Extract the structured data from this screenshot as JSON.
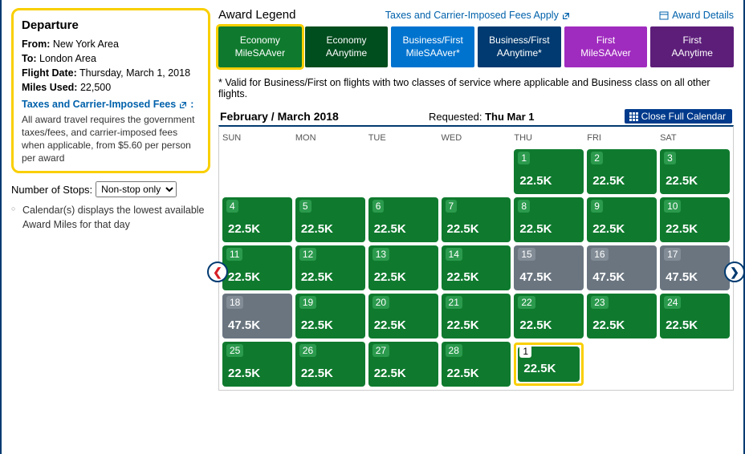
{
  "departure": {
    "heading": "Departure",
    "from_label": "From:",
    "from_value": "New York Area",
    "to_label": "To:",
    "to_value": "London Area",
    "date_label": "Flight Date:",
    "date_value": "Thursday, March 1, 2018",
    "miles_label": "Miles Used:",
    "miles_value": "22,500",
    "taxes_link": "Taxes and Carrier-Imposed Fees",
    "taxes_note": "All award travel requires the government taxes/fees, and carrier-imposed fees when applicable, from $5.60 per person per award"
  },
  "stops": {
    "label": "Number of Stops:",
    "selected": "Non-stop only"
  },
  "calendar_note": "Calendar(s) displays the lowest available Award Miles for that day",
  "top": {
    "award_legend": "Award Legend",
    "fees_apply": "Taxes and Carrier-Imposed Fees Apply",
    "award_details": "Award Details"
  },
  "legend": {
    "tabs": [
      {
        "l1": "Economy",
        "l2": "MileSAAver",
        "bg": "#0f7a2e",
        "active": true
      },
      {
        "l1": "Economy",
        "l2": "AAnytime",
        "bg": "#004d1e"
      },
      {
        "l1": "Business/First",
        "l2": "MileSAAver*",
        "bg": "#0073cf"
      },
      {
        "l1": "Business/First",
        "l2": "AAnytime*",
        "bg": "#003a70"
      },
      {
        "l1": "First",
        "l2": "MileSAAver",
        "bg": "#a02bbf"
      },
      {
        "l1": "First",
        "l2": "AAnytime",
        "bg": "#5d1e7a"
      }
    ]
  },
  "footnote": "* Valid for Business/First on flights with two classes of service where applicable and Business class on all other flights.",
  "calendar": {
    "month_label": "February / March 2018",
    "requested_label": "Requested:",
    "requested_value": "Thu Mar 1",
    "close_btn": "Close Full Calendar",
    "dow": [
      "SUN",
      "MON",
      "TUE",
      "WED",
      "THU",
      "FRI",
      "SAT"
    ],
    "cells": [
      [
        null,
        null,
        null,
        null,
        {
          "d": "1",
          "m": "22.5K",
          "c": "green"
        },
        {
          "d": "2",
          "m": "22.5K",
          "c": "green"
        },
        {
          "d": "3",
          "m": "22.5K",
          "c": "green"
        }
      ],
      [
        {
          "d": "4",
          "m": "22.5K",
          "c": "green"
        },
        {
          "d": "5",
          "m": "22.5K",
          "c": "green"
        },
        {
          "d": "6",
          "m": "22.5K",
          "c": "green"
        },
        {
          "d": "7",
          "m": "22.5K",
          "c": "green"
        },
        {
          "d": "8",
          "m": "22.5K",
          "c": "green"
        },
        {
          "d": "9",
          "m": "22.5K",
          "c": "green"
        },
        {
          "d": "10",
          "m": "22.5K",
          "c": "green"
        }
      ],
      [
        {
          "d": "11",
          "m": "22.5K",
          "c": "green"
        },
        {
          "d": "12",
          "m": "22.5K",
          "c": "green"
        },
        {
          "d": "13",
          "m": "22.5K",
          "c": "green"
        },
        {
          "d": "14",
          "m": "22.5K",
          "c": "green"
        },
        {
          "d": "15",
          "m": "47.5K",
          "c": "gray"
        },
        {
          "d": "16",
          "m": "47.5K",
          "c": "gray"
        },
        {
          "d": "17",
          "m": "47.5K",
          "c": "gray"
        }
      ],
      [
        {
          "d": "18",
          "m": "47.5K",
          "c": "gray"
        },
        {
          "d": "19",
          "m": "22.5K",
          "c": "green"
        },
        {
          "d": "20",
          "m": "22.5K",
          "c": "green"
        },
        {
          "d": "21",
          "m": "22.5K",
          "c": "green"
        },
        {
          "d": "22",
          "m": "22.5K",
          "c": "green"
        },
        {
          "d": "23",
          "m": "22.5K",
          "c": "green"
        },
        {
          "d": "24",
          "m": "22.5K",
          "c": "green"
        }
      ],
      [
        {
          "d": "25",
          "m": "22.5K",
          "c": "green"
        },
        {
          "d": "26",
          "m": "22.5K",
          "c": "green"
        },
        {
          "d": "27",
          "m": "22.5K",
          "c": "green"
        },
        {
          "d": "28",
          "m": "22.5K",
          "c": "green"
        },
        {
          "d": "1",
          "m": "22.5K",
          "c": "green",
          "selected": true
        },
        null,
        null
      ]
    ]
  },
  "colors": {
    "green": "#0f7a2e",
    "gray": "#6a7580",
    "highlight_border": "#f9cf00",
    "navy": "#003a70",
    "link": "#0061ab"
  }
}
